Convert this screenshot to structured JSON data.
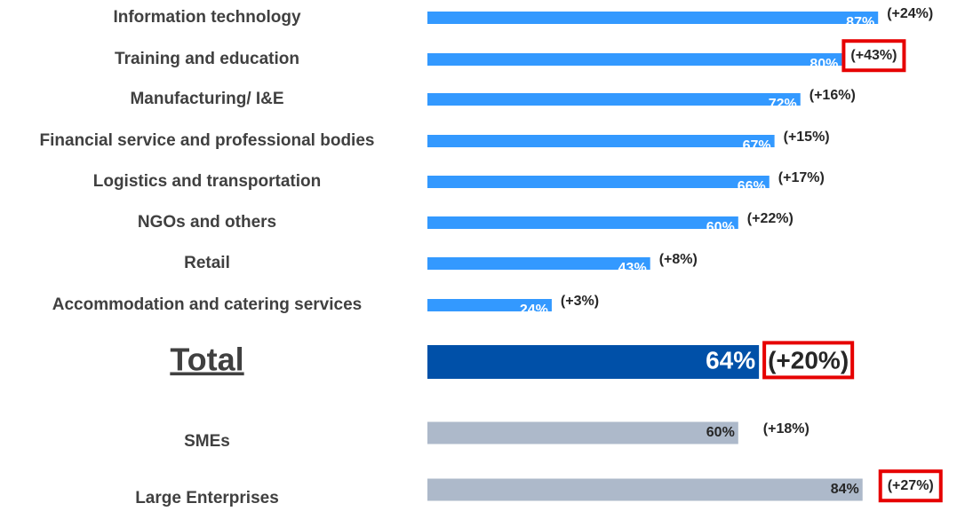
{
  "chart_data": {
    "type": "bar",
    "categories": [
      "Information technology",
      "Training and education",
      "Manufacturing/ I&E",
      "Financial service and professional bodies",
      "Logistics and transportation",
      "NGOs and others",
      "Retail",
      "Accommodation and catering services",
      "Total",
      "SMEs",
      "Large Enterprises"
    ],
    "values": [
      87,
      80,
      72,
      67,
      66,
      60,
      43,
      24,
      64,
      60,
      84
    ],
    "value_labels": [
      "87%",
      "80%",
      "72%",
      "67%",
      "66%",
      "60%",
      "43%",
      "24%",
      "64%",
      "60%",
      "84%"
    ],
    "change_labels": [
      "(+24%)",
      "(+43%)",
      "(+16%)",
      "(+15%)",
      "(+17%)",
      "(+22%)",
      "(+8%)",
      "(+3%)",
      "(+20%)",
      "(+18%)",
      "(+27%)"
    ],
    "colors": [
      "#3399ff",
      "#3399ff",
      "#3399ff",
      "#3399ff",
      "#3399ff",
      "#3399ff",
      "#3399ff",
      "#3399ff",
      "#0050a8",
      "#adb9ca",
      "#adb9ca"
    ],
    "highlighted": [
      1,
      8,
      10
    ]
  }
}
